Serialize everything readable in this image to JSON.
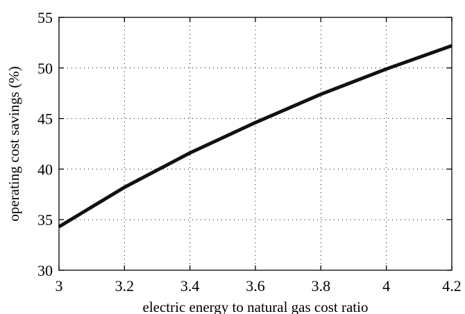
{
  "chart_data": {
    "type": "line",
    "title": "",
    "xlabel": "electric energy to natural gas cost ratio",
    "ylabel": "operating cost savings  (%)",
    "xlim": [
      3,
      4.2
    ],
    "ylim": [
      30,
      55
    ],
    "xticks": [
      3,
      3.2,
      3.4,
      3.6,
      3.8,
      4,
      4.2
    ],
    "xtick_labels": [
      "3",
      "3.2",
      "3.4",
      "3.6",
      "3.8",
      "4",
      "4.2"
    ],
    "yticks": [
      30,
      35,
      40,
      45,
      50,
      55
    ],
    "ytick_labels": [
      "30",
      "35",
      "40",
      "45",
      "50",
      "55"
    ],
    "grid": true,
    "series": [
      {
        "color": "#111111",
        "x": [
          3.0,
          3.2,
          3.4,
          3.6,
          3.8,
          4.0,
          4.2
        ],
        "y": [
          34.3,
          38.2,
          41.6,
          44.6,
          47.4,
          49.9,
          52.2
        ]
      }
    ]
  }
}
